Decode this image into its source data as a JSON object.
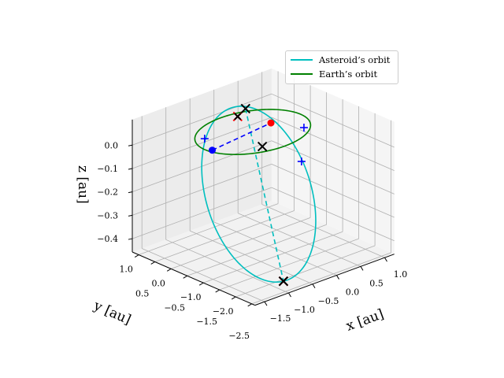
{
  "chart_data": {
    "type": "line3d",
    "title": "",
    "xlabel": "x [au]",
    "ylabel": "y [au]",
    "zlabel": "z [au]",
    "xlim": [
      -1.7,
      1.2
    ],
    "ylim": [
      -2.6,
      1.2
    ],
    "zlim": [
      -0.457,
      0.109
    ],
    "xticks": [
      -1.5,
      -1.0,
      -0.5,
      0.0,
      0.5,
      1.0
    ],
    "xtick_labels": [
      "−1.5",
      "−1.0",
      "−0.5",
      "0.0",
      "0.5",
      "1.0"
    ],
    "yticks": [
      1.0,
      0.5,
      0.0,
      -0.5,
      -1.0,
      -1.5,
      -2.0,
      -2.5
    ],
    "ytick_labels": [
      "1.0",
      "0.5",
      "0.0",
      "−0.5",
      "−1.0",
      "−1.5",
      "−2.0",
      "−2.5"
    ],
    "zticks": [
      0.0,
      -0.1,
      -0.2,
      -0.3,
      -0.4
    ],
    "ztick_labels": [
      "0.0",
      "−0.1",
      "−0.2",
      "−0.3",
      "−0.4"
    ],
    "grid": true,
    "legend": "top-right",
    "series": [
      {
        "name": "Asteroid’s orbit",
        "color": "#00bfbf",
        "kind": "ellipse",
        "center": [
          -0.424,
          -0.8175,
          -0.185
        ],
        "axis_a": [
          0.553,
          1.5925,
          0.235
        ],
        "axis_b": [
          0.9,
          -0.25,
          0.0
        ]
      },
      {
        "name": "Earth’s orbit",
        "color": "#008000",
        "kind": "circle",
        "center": [
          0,
          0,
          0
        ],
        "radius": 1.0
      }
    ],
    "lines": [
      {
        "from": [
          0.16,
          0.46,
          0.06
        ],
        "to": [
          -0.98,
          -2.41,
          -0.42
        ],
        "color": "#00bfbf",
        "style": "dashed"
      },
      {
        "from": [
          -0.93,
          -0.13,
          0.0
        ],
        "to": [
          0.44,
          0.09,
          0.0
        ],
        "color": "#0000ff",
        "style": "dashed"
      }
    ],
    "markers": [
      {
        "pos": [
          -0.93,
          -0.13,
          0.0
        ],
        "marker": "dot",
        "color": "#0000ff"
      },
      {
        "pos": [
          0.44,
          0.09,
          0.0
        ],
        "marker": "dot",
        "color": "#ff0000"
      },
      {
        "pos": [
          -0.9,
          0.15,
          0.03
        ],
        "marker": "plus",
        "color": "#0000ff"
      },
      {
        "pos": [
          0.69,
          -0.56,
          0.0
        ],
        "marker": "plus",
        "color": "#0000ff"
      },
      {
        "pos": [
          0.27,
          -1.11,
          -0.08
        ],
        "marker": "plus",
        "color": "#0000ff"
      },
      {
        "pos": [
          0.05,
          0.54,
          0.03
        ],
        "marker": "x",
        "color": "#ff0000"
      },
      {
        "pos": [
          -0.98,
          -2.41,
          -0.42
        ],
        "marker": "x",
        "color": "#ff0000"
      },
      {
        "pos": [
          0.16,
          0.46,
          0.06
        ],
        "marker": "x",
        "color": "#000000"
      },
      {
        "pos": [
          0.05,
          0.54,
          0.03
        ],
        "marker": "x-small",
        "color": "#000000"
      },
      {
        "pos": [
          -0.27,
          -0.7,
          0.0
        ],
        "marker": "x",
        "color": "#000000"
      },
      {
        "pos": [
          -0.98,
          -2.41,
          -0.42
        ],
        "marker": "x",
        "color": "#000000"
      }
    ]
  }
}
